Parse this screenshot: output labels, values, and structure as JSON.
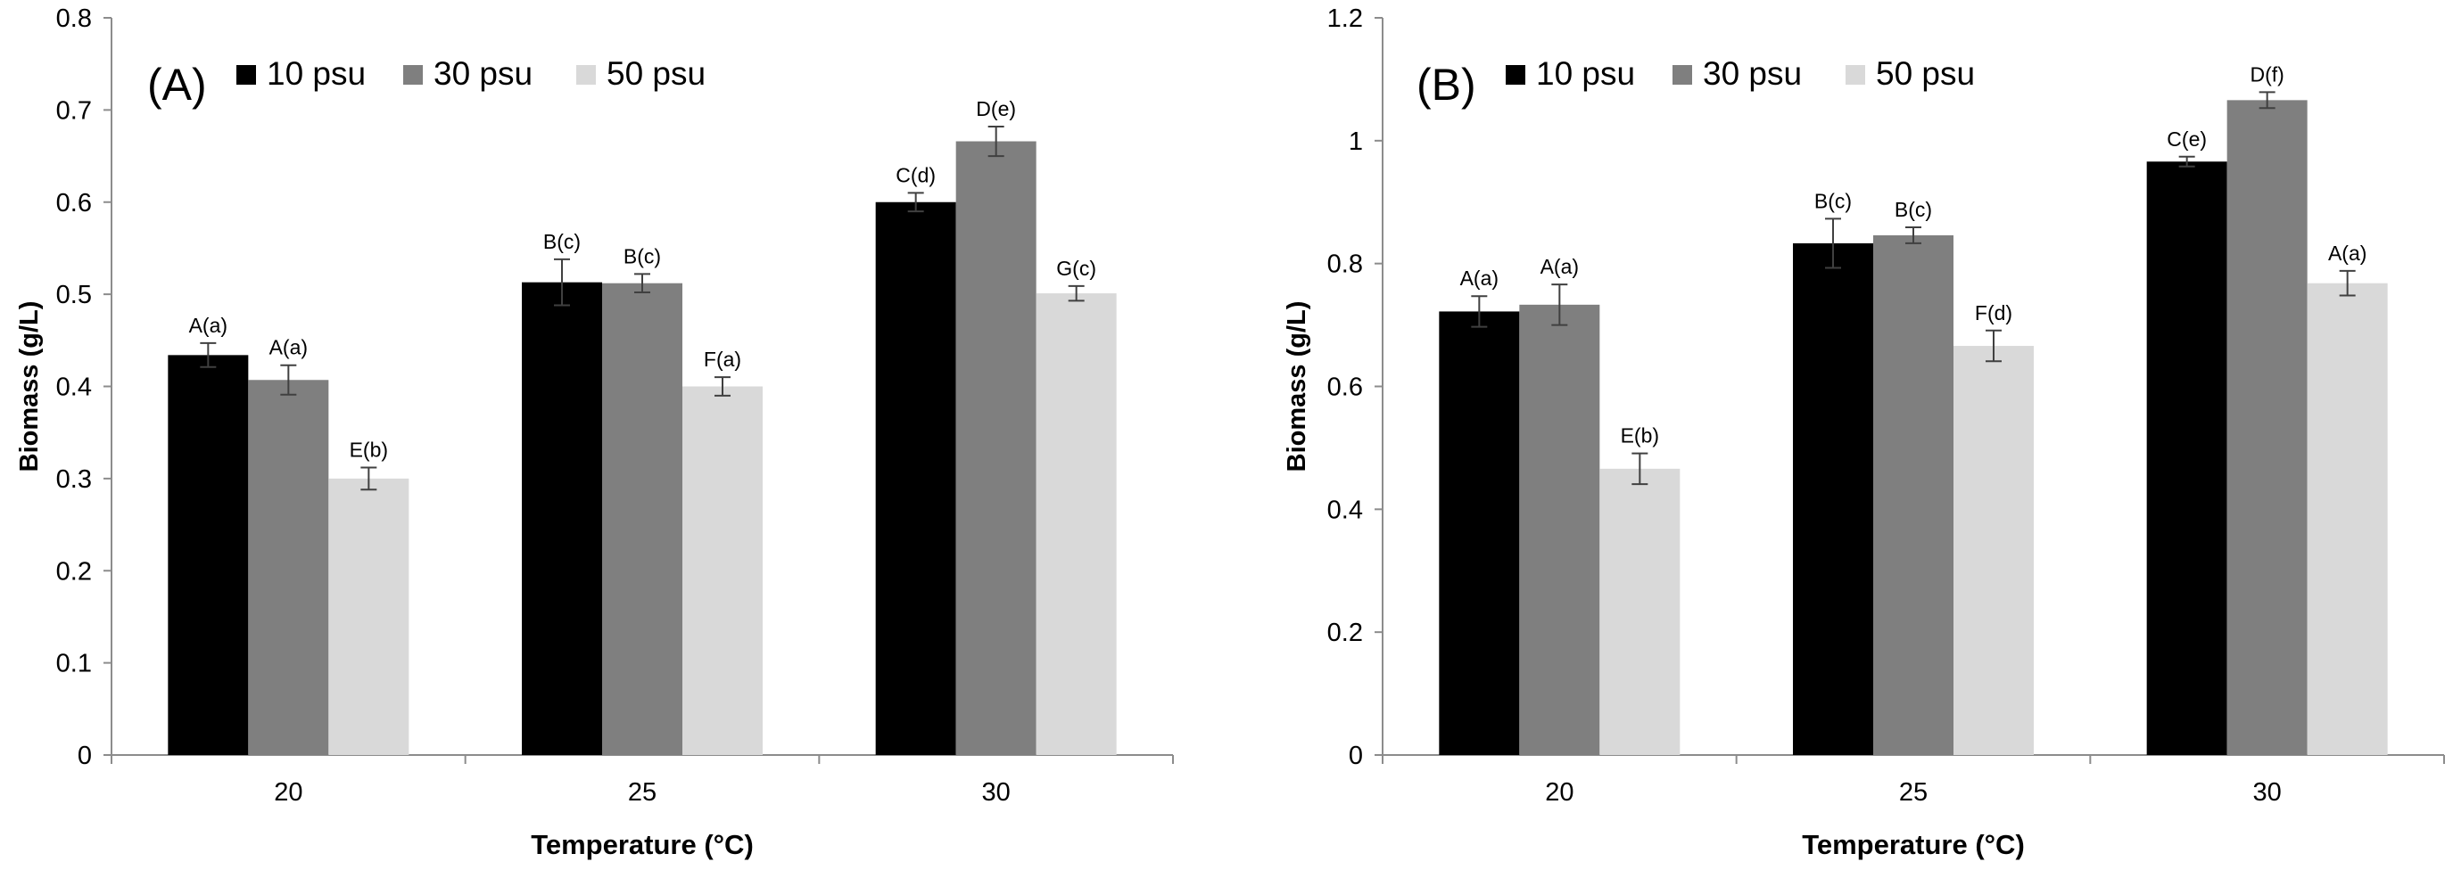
{
  "legend_items": [
    {
      "label": "10 psu",
      "color": "#000000"
    },
    {
      "label": "30 psu",
      "color": "#7f7f7f"
    },
    {
      "label": "50 psu",
      "color": "#d9d9d9"
    }
  ],
  "chart_data": [
    {
      "type": "bar",
      "panel_label": "(A)",
      "xlabel": "Temperature (°C)",
      "ylabel": "Biomass (g/L)",
      "categories": [
        "20",
        "25",
        "30"
      ],
      "ylim": [
        0,
        0.8
      ],
      "yticks": [
        0,
        0.1,
        0.2,
        0.3,
        0.4,
        0.5,
        0.6,
        0.7,
        0.8
      ],
      "ytick_labels": [
        "0",
        "0.1",
        "0.2",
        "0.3",
        "0.4",
        "0.5",
        "0.6",
        "0.7",
        "0.8"
      ],
      "legend": "top-left",
      "grid": false,
      "series": [
        {
          "name": "10 psu",
          "values": [
            0.434,
            0.513,
            0.6
          ],
          "errors": [
            0.013,
            0.025,
            0.01
          ],
          "labels": [
            "A(a)",
            "B(c)",
            "C(d)"
          ]
        },
        {
          "name": "30 psu",
          "values": [
            0.407,
            0.512,
            0.666
          ],
          "errors": [
            0.016,
            0.01,
            0.016
          ],
          "labels": [
            "A(a)",
            "B(c)",
            "D(e)"
          ]
        },
        {
          "name": "50 psu",
          "values": [
            0.3,
            0.4,
            0.501
          ],
          "errors": [
            0.012,
            0.01,
            0.008
          ],
          "labels": [
            "E(b)",
            "F(a)",
            "G(c)"
          ]
        }
      ]
    },
    {
      "type": "bar",
      "panel_label": "(B)",
      "xlabel": "Temperature (°C)",
      "ylabel": "Biomass (g/L)",
      "categories": [
        "20",
        "25",
        "30"
      ],
      "ylim": [
        0,
        1.2
      ],
      "yticks": [
        0,
        0.2,
        0.4,
        0.6,
        0.8,
        1.0,
        1.2
      ],
      "ytick_labels": [
        "0",
        "0.2",
        "0.4",
        "0.6",
        "0.8",
        "1",
        "1.2"
      ],
      "legend": "top-left",
      "grid": false,
      "series": [
        {
          "name": "10 psu",
          "values": [
            0.722,
            0.833,
            0.966
          ],
          "errors": [
            0.025,
            0.04,
            0.008
          ],
          "labels": [
            "A(a)",
            "B(c)",
            "C(e)"
          ]
        },
        {
          "name": "30 psu",
          "values": [
            0.733,
            0.846,
            1.066
          ],
          "errors": [
            0.033,
            0.013,
            0.013
          ],
          "labels": [
            "A(a)",
            "B(c)",
            "D(f)"
          ]
        },
        {
          "name": "50 psu",
          "values": [
            0.466,
            0.666,
            0.768
          ],
          "errors": [
            0.025,
            0.025,
            0.02
          ],
          "labels": [
            "E(b)",
            "F(d)",
            "A(a)"
          ]
        }
      ]
    }
  ]
}
